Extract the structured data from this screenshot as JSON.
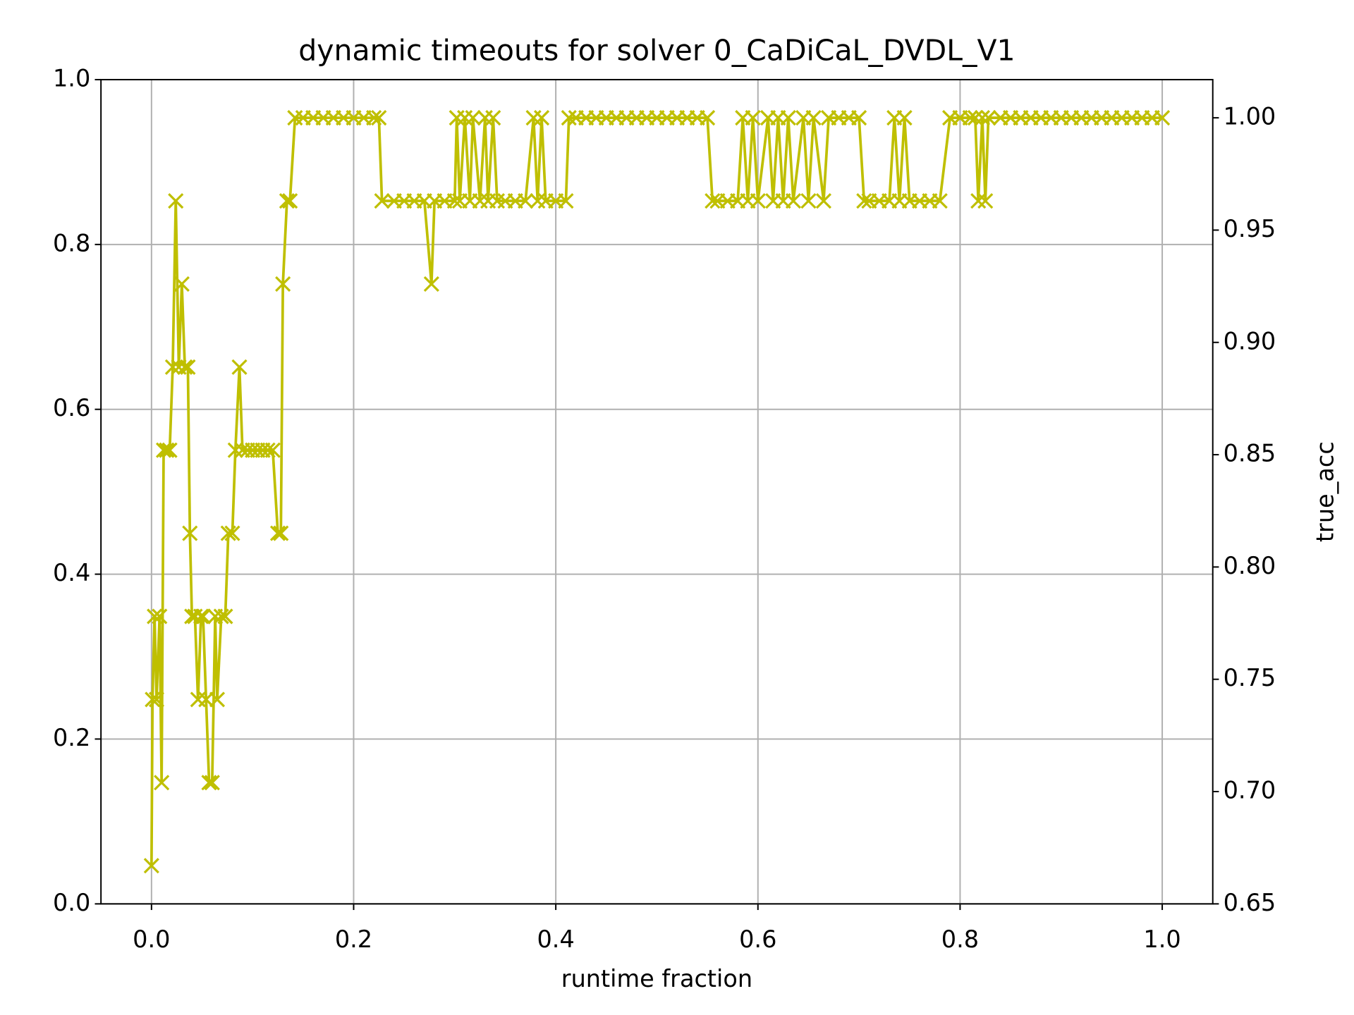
{
  "chart_data": {
    "type": "line",
    "title": "dynamic timeouts for solver 0_CaDiCaL_DVDL_V1",
    "xlabel": "runtime fraction",
    "y2label": "true_acc",
    "y2label_color": "#ff0000",
    "grid": true,
    "marker": "x",
    "xlim": [
      -0.05,
      1.05
    ],
    "xticks": [
      {
        "value": 0,
        "label": "0.0"
      },
      0.2,
      0.4,
      0.6,
      0.8,
      {
        "value": 1,
        "label": "1.0"
      }
    ],
    "ylim": [
      0,
      1
    ],
    "yticks": [
      {
        "value": 0,
        "label": "0.0"
      },
      0.2,
      0.4,
      0.6,
      0.8,
      {
        "value": 1,
        "label": "1.0"
      }
    ],
    "y2lim": [
      0.65,
      1.017
    ],
    "y2ticks": [
      0.65,
      {
        "value": 0.7,
        "label": "0.70"
      },
      0.75,
      {
        "value": 0.8,
        "label": "0.80"
      },
      0.85,
      {
        "value": 0.9,
        "label": "0.90"
      },
      0.95,
      {
        "value": 1,
        "label": "1.00"
      }
    ],
    "x": [
      0,
      0.001,
      0.003,
      0.005,
      0.008,
      0.01,
      0.012,
      0.015,
      0.018,
      0.021,
      0.024,
      0.027,
      0.03,
      0.033,
      0.036,
      0.038,
      0.04,
      0.043,
      0.046,
      0.049,
      0.051,
      0.054,
      0.057,
      0.06,
      0.063,
      0.065,
      0.069,
      0.073,
      0.076,
      0.08,
      0.083,
      0.087,
      0.09,
      0.095,
      0.1,
      0.105,
      0.11,
      0.115,
      0.12,
      0.125,
      0.128,
      0.13,
      0.134,
      0.137,
      0.142,
      0.15,
      0.16,
      0.17,
      0.18,
      0.19,
      0.2,
      0.21,
      0.22,
      0.225,
      0.228,
      0.24,
      0.25,
      0.26,
      0.27,
      0.277,
      0.28,
      0.29,
      0.3,
      0.302,
      0.305,
      0.31,
      0.315,
      0.318,
      0.325,
      0.33,
      0.333,
      0.338,
      0.342,
      0.35,
      0.36,
      0.37,
      0.378,
      0.382,
      0.386,
      0.39,
      0.4,
      0.41,
      0.413,
      0.42,
      0.43,
      0.44,
      0.45,
      0.46,
      0.47,
      0.48,
      0.49,
      0.5,
      0.51,
      0.52,
      0.53,
      0.54,
      0.55,
      0.555,
      0.56,
      0.57,
      0.58,
      0.585,
      0.59,
      0.595,
      0.6,
      0.61,
      0.615,
      0.62,
      0.625,
      0.63,
      0.635,
      0.645,
      0.65,
      0.655,
      0.665,
      0.67,
      0.68,
      0.69,
      0.7,
      0.705,
      0.71,
      0.72,
      0.73,
      0.735,
      0.74,
      0.745,
      0.75,
      0.76,
      0.77,
      0.78,
      0.79,
      0.8,
      0.81,
      0.815,
      0.818,
      0.822,
      0.825,
      0.828,
      0.84,
      0.85,
      0.86,
      0.87,
      0.88,
      0.89,
      0.9,
      0.91,
      0.92,
      0.93,
      0.94,
      0.95,
      0.96,
      0.97,
      0.98,
      0.99,
      1.0
    ],
    "series": [
      {
        "name": "true_acc",
        "color": "#bfbf00",
        "axis": "y2",
        "values": [
          0.667,
          0.741,
          0.778,
          0.741,
          0.778,
          0.704,
          0.852,
          0.852,
          0.852,
          0.889,
          0.963,
          0.889,
          0.926,
          0.889,
          0.889,
          0.815,
          0.778,
          0.778,
          0.741,
          0.778,
          0.778,
          0.741,
          0.704,
          0.704,
          0.778,
          0.741,
          0.778,
          0.778,
          0.815,
          0.815,
          0.852,
          0.889,
          0.852,
          0.852,
          0.852,
          0.852,
          0.852,
          0.852,
          0.852,
          0.815,
          0.815,
          0.926,
          0.963,
          0.963,
          1,
          1,
          1,
          1,
          1,
          1,
          1,
          1,
          1,
          1,
          0.963,
          0.963,
          0.963,
          0.963,
          0.963,
          0.926,
          0.963,
          0.963,
          0.963,
          1,
          0.963,
          1,
          0.963,
          1,
          0.963,
          1,
          0.963,
          1,
          0.963,
          0.963,
          0.963,
          0.963,
          1,
          0.963,
          1,
          0.963,
          0.963,
          0.963,
          1,
          1,
          1,
          1,
          1,
          1,
          1,
          1,
          1,
          1,
          1,
          1,
          1,
          1,
          1,
          0.963,
          0.963,
          0.963,
          0.963,
          1,
          0.963,
          1,
          0.963,
          1,
          0.963,
          1,
          0.963,
          1,
          0.963,
          1,
          0.963,
          1,
          0.963,
          1,
          1,
          1,
          1,
          0.963,
          0.963,
          0.963,
          0.963,
          1,
          0.963,
          1,
          0.963,
          0.963,
          0.963,
          0.963,
          1,
          1,
          1,
          1,
          0.963,
          1,
          0.963,
          1,
          1,
          1,
          1,
          1,
          1,
          1,
          1,
          1,
          1,
          1,
          1,
          1,
          1,
          1,
          1,
          1,
          1
        ]
      }
    ]
  }
}
